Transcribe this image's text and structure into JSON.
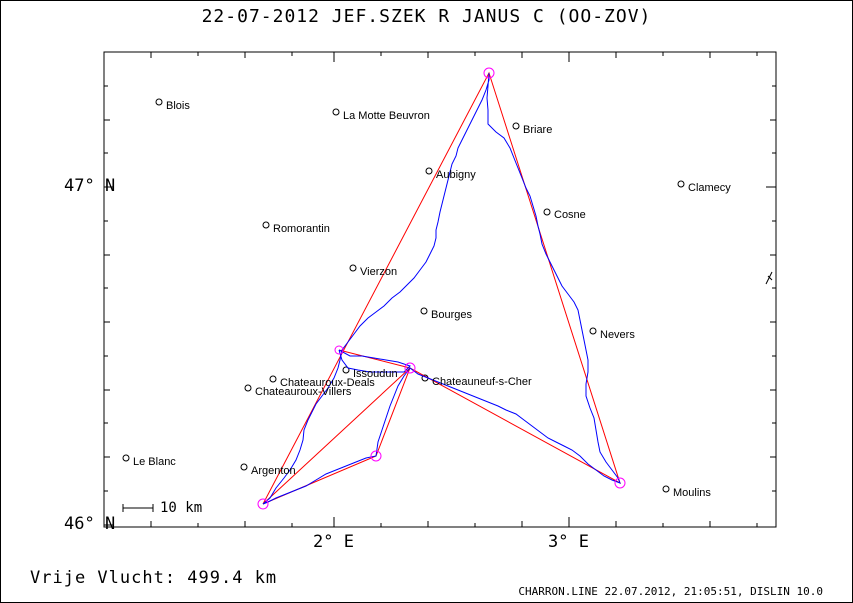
{
  "title": "22-07-2012   JEF.SZEK R   JANUS C (OO-ZOV)",
  "footer": {
    "distance": "Vrije Vlucht:  499.4 km",
    "credit": "CHARRON.LINE 22.07.2012, 21:05:51, DISLIN 10.0"
  },
  "axes": {
    "y_labels": [
      "47° N",
      "46° N"
    ],
    "x_labels": [
      "2° E",
      "3° E"
    ]
  },
  "scale_label": "10 km",
  "cities": [
    {
      "name": "Blois"
    },
    {
      "name": "La Motte Beuvron"
    },
    {
      "name": "Briare"
    },
    {
      "name": "Aubigny"
    },
    {
      "name": "Clamecy"
    },
    {
      "name": "Cosne"
    },
    {
      "name": "Romorantin"
    },
    {
      "name": "Vierzon"
    },
    {
      "name": "Bourges"
    },
    {
      "name": "Nevers"
    },
    {
      "name": "Issoudun"
    },
    {
      "name": "Chateauroux-Deals"
    },
    {
      "name": "Chateauroux-Villers"
    },
    {
      "name": "Chateauneuf-s-Cher"
    },
    {
      "name": "Le Blanc"
    },
    {
      "name": "Argenton"
    },
    {
      "name": "Moulins"
    }
  ],
  "colors": {
    "task": "#ff0000",
    "track": "#0000ff",
    "turnpoint": "#ff00ff"
  }
}
